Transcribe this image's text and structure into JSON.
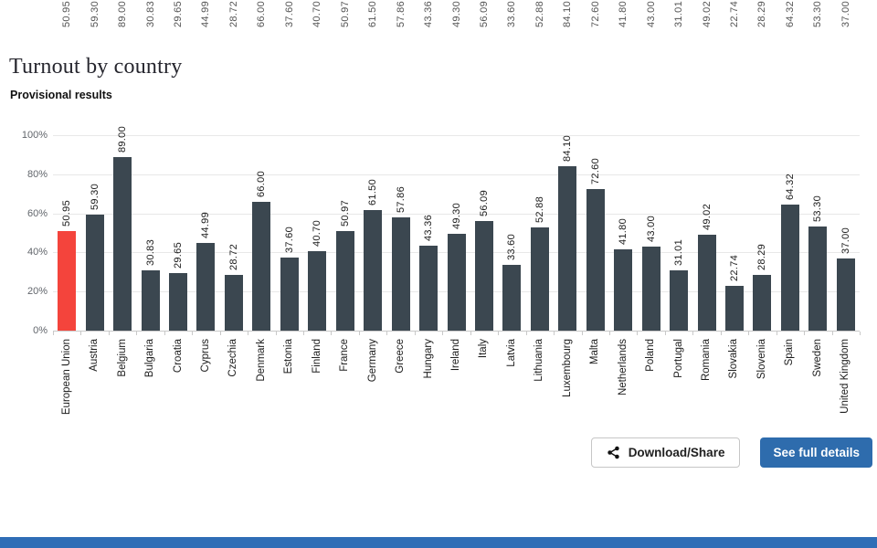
{
  "page": {
    "title": "Turnout by country",
    "subtitle": "Provisional results"
  },
  "chart_data": {
    "type": "bar",
    "title": "Turnout by country",
    "subtitle": "Provisional results",
    "xlabel": "",
    "ylabel": "",
    "ylim": [
      0,
      100
    ],
    "yticks": [
      "0%",
      "20%",
      "40%",
      "60%",
      "80%",
      "100%"
    ],
    "grid": true,
    "legend": "none",
    "categories": [
      "European Union",
      "Austria",
      "Belgium",
      "Bulgaria",
      "Croatia",
      "Cyprus",
      "Czechia",
      "Denmark",
      "Estonia",
      "Finland",
      "France",
      "Germany",
      "Greece",
      "Hungary",
      "Ireland",
      "Italy",
      "Latvia",
      "Lithuania",
      "Luxembourg",
      "Malta",
      "Netherlands",
      "Poland",
      "Portugal",
      "Romania",
      "Slovakia",
      "Slovenia",
      "Spain",
      "Sweden",
      "United Kingdom"
    ],
    "values": [
      50.95,
      59.3,
      89.0,
      30.83,
      29.65,
      44.99,
      28.72,
      66.0,
      37.6,
      40.7,
      50.97,
      61.5,
      57.86,
      43.36,
      49.3,
      56.09,
      33.6,
      52.88,
      84.1,
      72.6,
      41.8,
      43.0,
      31.01,
      49.02,
      22.74,
      28.29,
      64.32,
      53.3,
      37.0
    ],
    "value_labels": [
      "50.95",
      "59.30",
      "89.00",
      "30.83",
      "29.65",
      "44.99",
      "28.72",
      "66.00",
      "37.60",
      "40.70",
      "50.97",
      "61.50",
      "57.86",
      "43.36",
      "49.30",
      "56.09",
      "33.60",
      "52.88",
      "84.10",
      "72.60",
      "41.80",
      "43.00",
      "31.01",
      "49.02",
      "22.74",
      "28.29",
      "64.32",
      "53.30",
      "37.00"
    ],
    "highlight_index": 0,
    "bar_color": "#3b4750",
    "highlight_color": "#f4443c"
  },
  "buttons": {
    "download_share": "Download/Share",
    "see_full_details": "See full details"
  },
  "colors": {
    "primary_button": "#2e6cad",
    "footer_strip": "#2f6db6",
    "grid": "#e8e8e8"
  }
}
